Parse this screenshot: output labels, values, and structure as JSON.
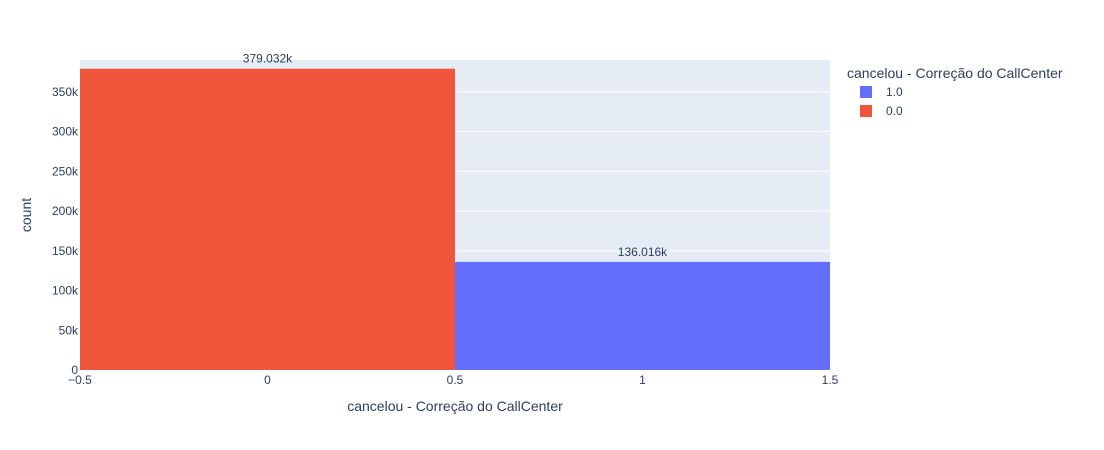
{
  "chart_data": {
    "type": "bar",
    "title": "",
    "xlabel": "cancelou - Correção do CallCenter",
    "ylabel": "count",
    "xlim": [
      -0.5,
      1.5
    ],
    "ylim": [
      0,
      390000
    ],
    "x_ticks": [
      -0.5,
      0,
      0.5,
      1,
      1.5
    ],
    "x_tick_labels": [
      "−0.5",
      "0",
      "0.5",
      "1",
      "1.5"
    ],
    "y_ticks": [
      0,
      50000,
      100000,
      150000,
      200000,
      250000,
      300000,
      350000
    ],
    "y_tick_labels": [
      "0",
      "50k",
      "100k",
      "150k",
      "200k",
      "250k",
      "300k",
      "350k"
    ],
    "grid": true,
    "legend": {
      "title": "cancelou - Correção do CallCenter",
      "placement": "right",
      "entries": [
        {
          "label": "1.0",
          "color": "#636efa"
        },
        {
          "label": "0.0",
          "color": "#ef553b"
        }
      ]
    },
    "series": [
      {
        "name": "1.0",
        "color": "#636efa",
        "x": [
          1
        ],
        "values": [
          136016
        ],
        "data_labels": [
          "136.016k"
        ]
      },
      {
        "name": "0.0",
        "color": "#ef553b",
        "x": [
          0
        ],
        "values": [
          379032
        ],
        "data_labels": [
          "379.032k"
        ]
      }
    ],
    "bar_width": 1,
    "colors": {
      "plot_background": "#e5ecf6",
      "grid": "#ffffff",
      "text": "#2a3f5f"
    }
  }
}
